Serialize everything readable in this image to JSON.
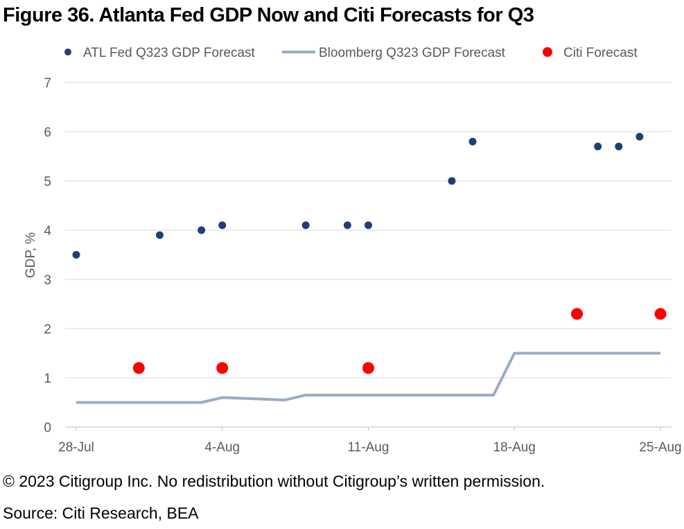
{
  "figure": {
    "title": "Figure 36. Atlanta Fed GDP Now and Citi Forecasts for Q3",
    "copyright": "© 2023 Citigroup Inc. No redistribution without Citigroup’s written permission.",
    "source": "Source: Citi Research, BEA"
  },
  "colors": {
    "atl": "#1f3f74",
    "bloomberg": "#9aabc8",
    "citi": "#ff0000",
    "grid": "#d9d9d9",
    "axis_text": "#595959"
  },
  "chart_data": {
    "type": "line",
    "title": "",
    "xlabel": "",
    "ylabel": "GDP, %",
    "ylim": [
      0,
      7
    ],
    "yticks": [
      "0",
      "1",
      "2",
      "3",
      "4",
      "5",
      "6",
      "7"
    ],
    "xlim": [
      "2023-07-28",
      "2023-08-25"
    ],
    "xticks": [
      {
        "date": "2023-07-28",
        "label": "28-Jul"
      },
      {
        "date": "2023-08-04",
        "label": "4-Aug"
      },
      {
        "date": "2023-08-11",
        "label": "11-Aug"
      },
      {
        "date": "2023-08-18",
        "label": "18-Aug"
      },
      {
        "date": "2023-08-25",
        "label": "25-Aug"
      }
    ],
    "grid": true,
    "legend_position": "top",
    "series": [
      {
        "name": "ATL Fed Q323 GDP Forecast",
        "style": "dots",
        "points": [
          {
            "date": "2023-07-28",
            "y": 3.5
          },
          {
            "date": "2023-08-01",
            "y": 3.9
          },
          {
            "date": "2023-08-03",
            "y": 4.0
          },
          {
            "date": "2023-08-04",
            "y": 4.1
          },
          {
            "date": "2023-08-08",
            "y": 4.1
          },
          {
            "date": "2023-08-10",
            "y": 4.1
          },
          {
            "date": "2023-08-11",
            "y": 4.1
          },
          {
            "date": "2023-08-15",
            "y": 5.0
          },
          {
            "date": "2023-08-16",
            "y": 5.8
          },
          {
            "date": "2023-08-22",
            "y": 5.7
          },
          {
            "date": "2023-08-23",
            "y": 5.7
          },
          {
            "date": "2023-08-24",
            "y": 5.9
          }
        ]
      },
      {
        "name": "Bloomberg Q323 GDP Forecast",
        "style": "line",
        "points": [
          {
            "date": "2023-07-28",
            "y": 0.5
          },
          {
            "date": "2023-08-03",
            "y": 0.5
          },
          {
            "date": "2023-08-04",
            "y": 0.6
          },
          {
            "date": "2023-08-07",
            "y": 0.55
          },
          {
            "date": "2023-08-08",
            "y": 0.65
          },
          {
            "date": "2023-08-17",
            "y": 0.65
          },
          {
            "date": "2023-08-18",
            "y": 1.5
          },
          {
            "date": "2023-08-25",
            "y": 1.5
          }
        ]
      },
      {
        "name": "Citi Forecast",
        "style": "big-dots",
        "points": [
          {
            "date": "2023-07-31",
            "y": 1.2
          },
          {
            "date": "2023-08-04",
            "y": 1.2
          },
          {
            "date": "2023-08-11",
            "y": 1.2
          },
          {
            "date": "2023-08-21",
            "y": 2.3
          },
          {
            "date": "2023-08-25",
            "y": 2.3
          }
        ]
      }
    ]
  }
}
